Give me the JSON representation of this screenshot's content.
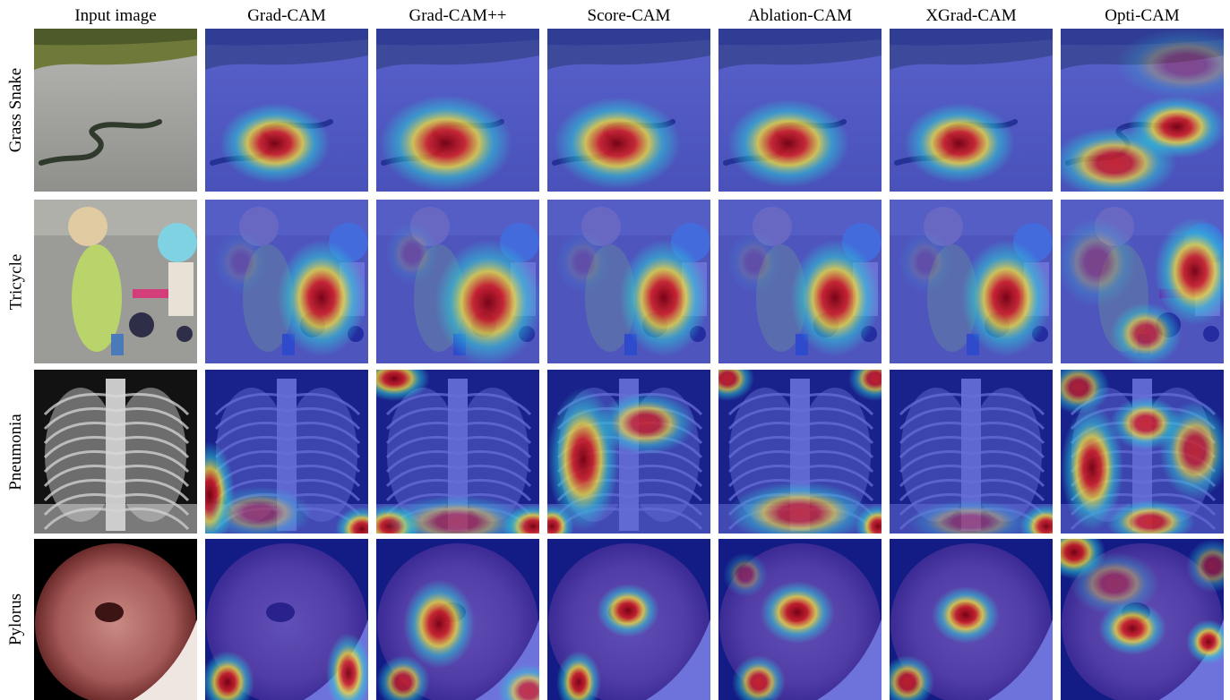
{
  "figure": {
    "columns": [
      {
        "label": "Input image",
        "key": "input"
      },
      {
        "label": "Grad-CAM",
        "key": "gradcam"
      },
      {
        "label": "Grad-CAM++",
        "key": "gradcampp"
      },
      {
        "label": "Score-CAM",
        "key": "scorecam"
      },
      {
        "label": "Ablation-CAM",
        "key": "ablationcam"
      },
      {
        "label": "XGrad-CAM",
        "key": "xgradcam"
      },
      {
        "label": "Opti-CAM",
        "key": "opticam"
      }
    ],
    "rows": [
      {
        "label": "Grass Snake",
        "key": "grass-snake"
      },
      {
        "label": "Tricycle",
        "key": "tricycle"
      },
      {
        "label": "Pneumonia",
        "key": "pneumonia"
      },
      {
        "label": "Pylorus",
        "key": "pylorus"
      }
    ]
  },
  "colors": {
    "heat_low": "#1f2bd6",
    "heat_mid": "#29d3d9",
    "heat_warm": "#f6e43a",
    "heat_high": "#d81e1e",
    "heat_peak": "#7a0010"
  }
}
